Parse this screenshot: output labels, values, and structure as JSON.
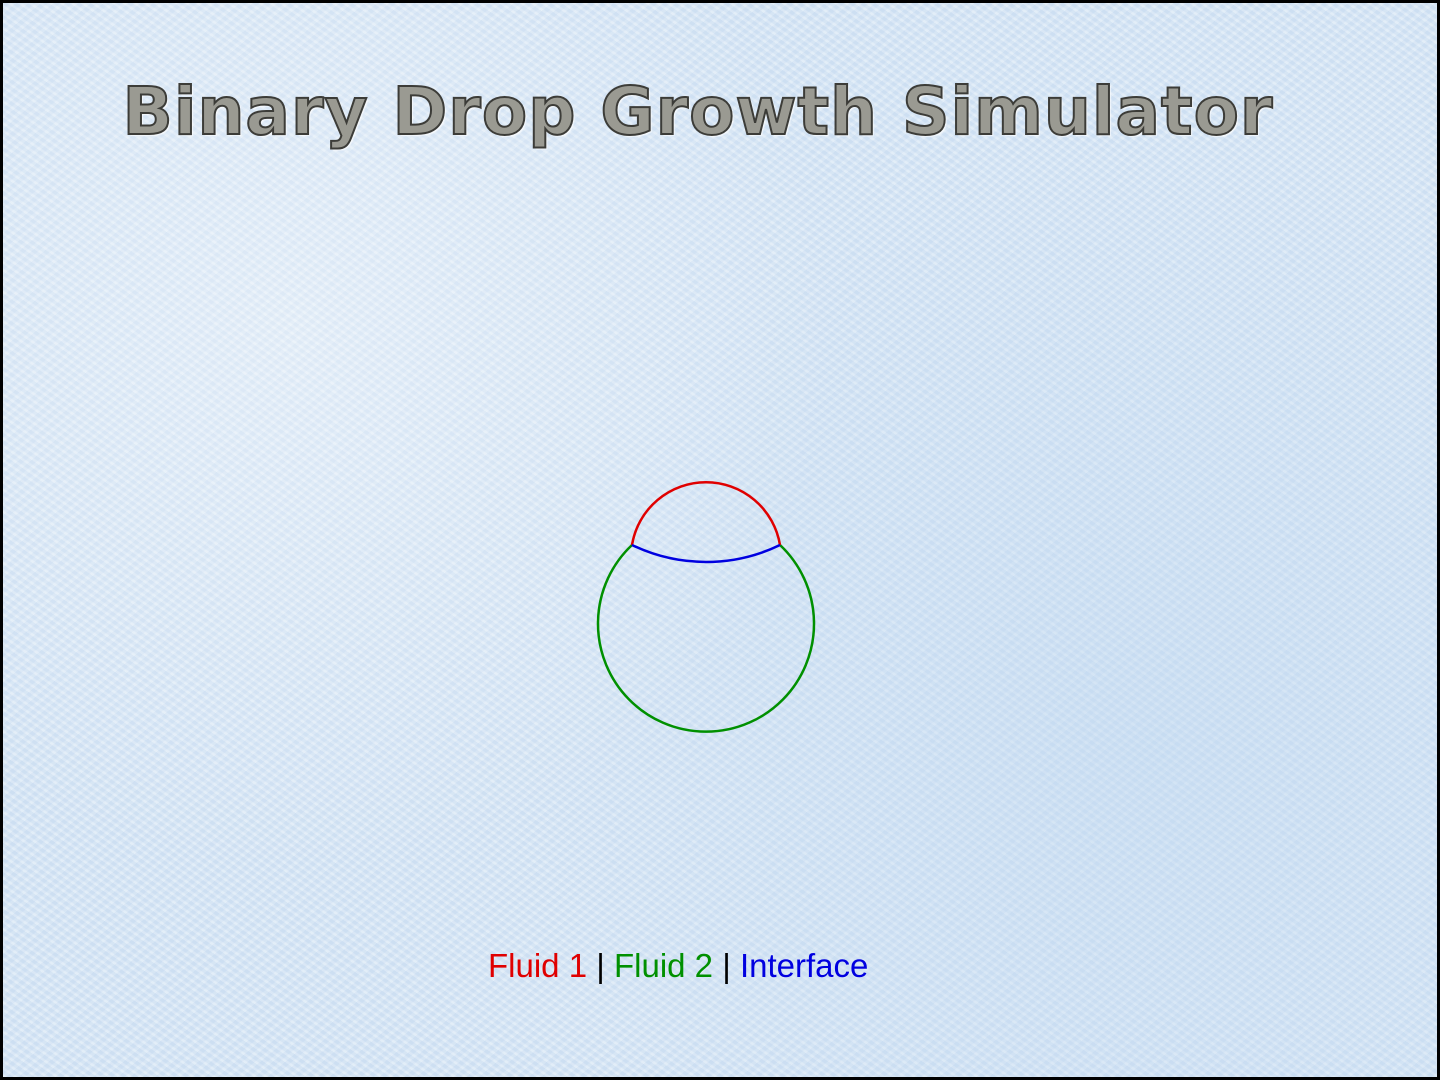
{
  "title": "Binary Drop Growth Simulator",
  "legend": {
    "fluid1": "Fluid 1",
    "separator1": " | ",
    "fluid2": "Fluid 2",
    "separator2": " | ",
    "interface": "Interface"
  },
  "colors": {
    "fluid1": "#e00000",
    "fluid2": "#009000",
    "interface": "#0000e0"
  }
}
